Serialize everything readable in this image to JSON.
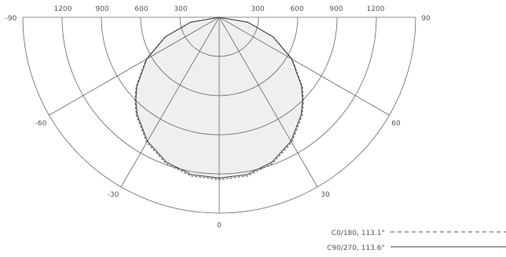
{
  "chart_data": {
    "type": "polar",
    "title": "",
    "units": "",
    "radial_ticks": [
      300,
      600,
      900,
      1200
    ],
    "radial_tick_labels": [
      "1200",
      "900",
      "600",
      "300",
      "300",
      "600",
      "900",
      "1200"
    ],
    "radial_max": 1500,
    "angle_ticks": [
      -90,
      -60,
      -30,
      0,
      30,
      60,
      90
    ],
    "angle_tick_labels": [
      "-90",
      "-60",
      "-30",
      "0",
      "30",
      "60",
      "90"
    ],
    "grid": true,
    "legend_position": "bottom-right",
    "series": [
      {
        "name": "C0/180, 113.1°",
        "line_style": "dashed",
        "color": "#555555",
        "angles": [
          -90,
          -80,
          -70,
          -60,
          -50,
          -45,
          -40,
          -30,
          -20,
          -10,
          0,
          10,
          20,
          30,
          40,
          45,
          50,
          60,
          70,
          80,
          90
        ],
        "values": [
          0,
          224,
          441,
          645,
          829,
          910,
          984,
          1107,
          1191,
          1235,
          1243,
          1235,
          1191,
          1107,
          984,
          910,
          829,
          645,
          441,
          224,
          0
        ]
      },
      {
        "name": "C90/270, 113.6°",
        "line_style": "solid",
        "color": "#444444",
        "angles": [
          -90,
          -80,
          -70,
          -60,
          -50,
          -45,
          -40,
          -30,
          -20,
          -10,
          0,
          10,
          20,
          30,
          40,
          45,
          50,
          60,
          70,
          80,
          90
        ],
        "values": [
          0,
          222,
          437,
          639,
          821,
          901,
          974,
          1096,
          1180,
          1224,
          1232,
          1224,
          1180,
          1096,
          974,
          901,
          821,
          639,
          437,
          222,
          0
        ]
      }
    ]
  }
}
